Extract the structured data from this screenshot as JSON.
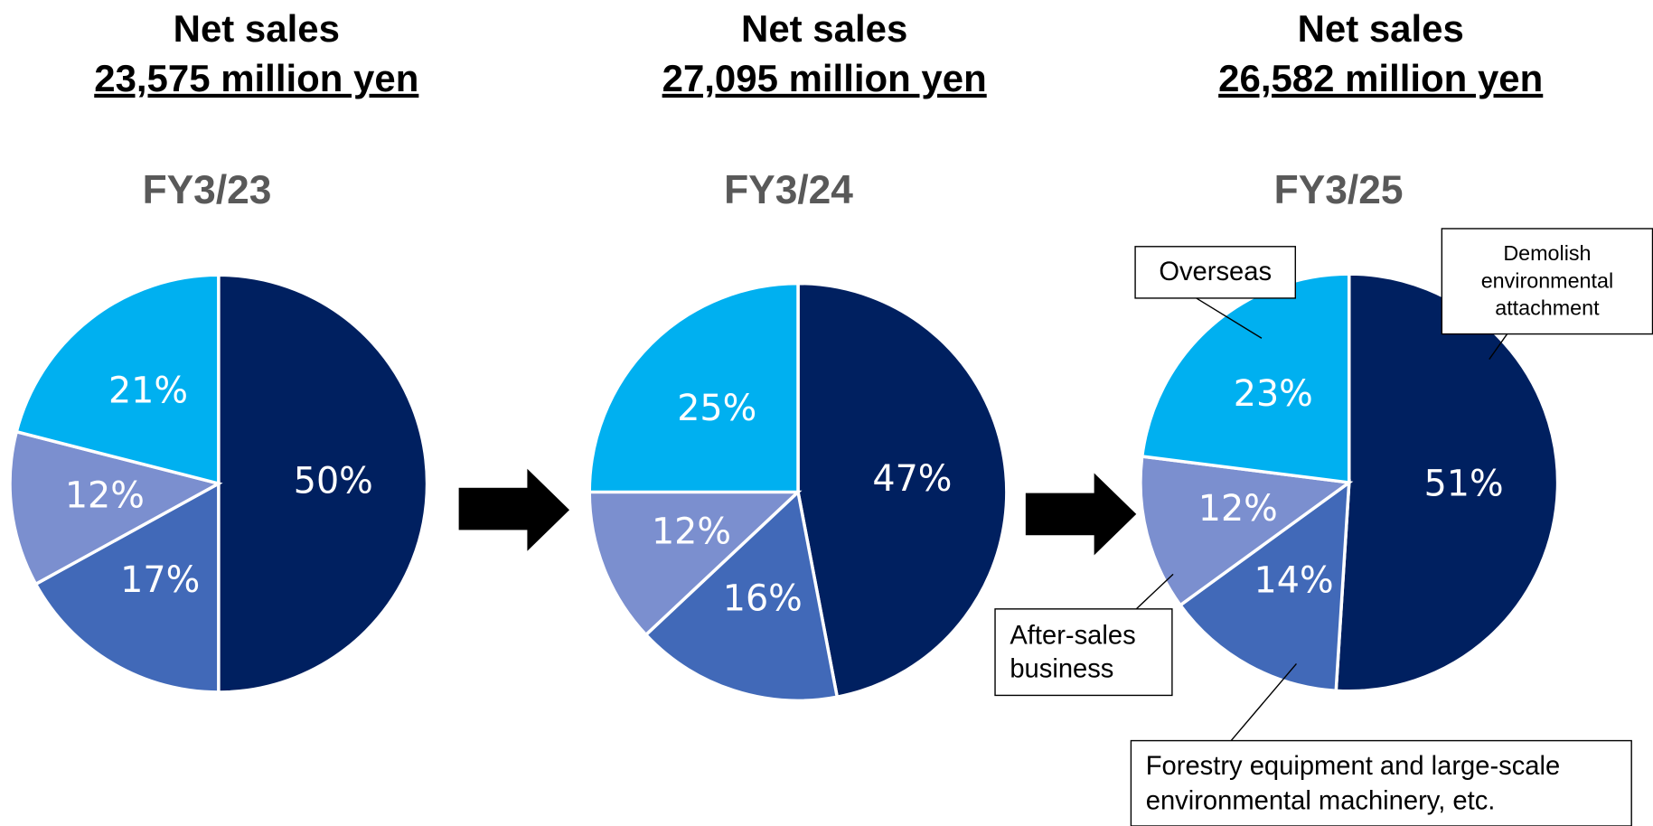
{
  "chart_data": [
    {
      "type": "pie",
      "headline": "Net sales",
      "amount": "23,575 million yen",
      "title": "FY3/23",
      "values": [
        50,
        17,
        12,
        21
      ],
      "value_labels": [
        "50%",
        "17%",
        "12%",
        "21%"
      ],
      "colors": [
        "#002060",
        "#4169b8",
        "#7b8fcf",
        "#00b0f0"
      ]
    },
    {
      "type": "pie",
      "headline": "Net sales",
      "amount": "27,095 million yen",
      "title": "FY3/24",
      "values": [
        47,
        16,
        12,
        25
      ],
      "value_labels": [
        "47%",
        "16%",
        "12%",
        "25%"
      ],
      "colors": [
        "#002060",
        "#4169b8",
        "#7b8fcf",
        "#00b0f0"
      ]
    },
    {
      "type": "pie",
      "headline": "Net sales",
      "amount": "26,582 million yen",
      "title": "FY3/25",
      "categories": [
        "Demolish environmental attachment",
        "Forestry equipment and large-scale environmental machinery, etc.",
        "After-sales business",
        "Overseas"
      ],
      "values": [
        51,
        14,
        12,
        23
      ],
      "value_labels": [
        "51%",
        "14%",
        "12%",
        "23%"
      ],
      "colors": [
        "#002060",
        "#4169b8",
        "#7b8fcf",
        "#00b0f0"
      ]
    }
  ]
}
